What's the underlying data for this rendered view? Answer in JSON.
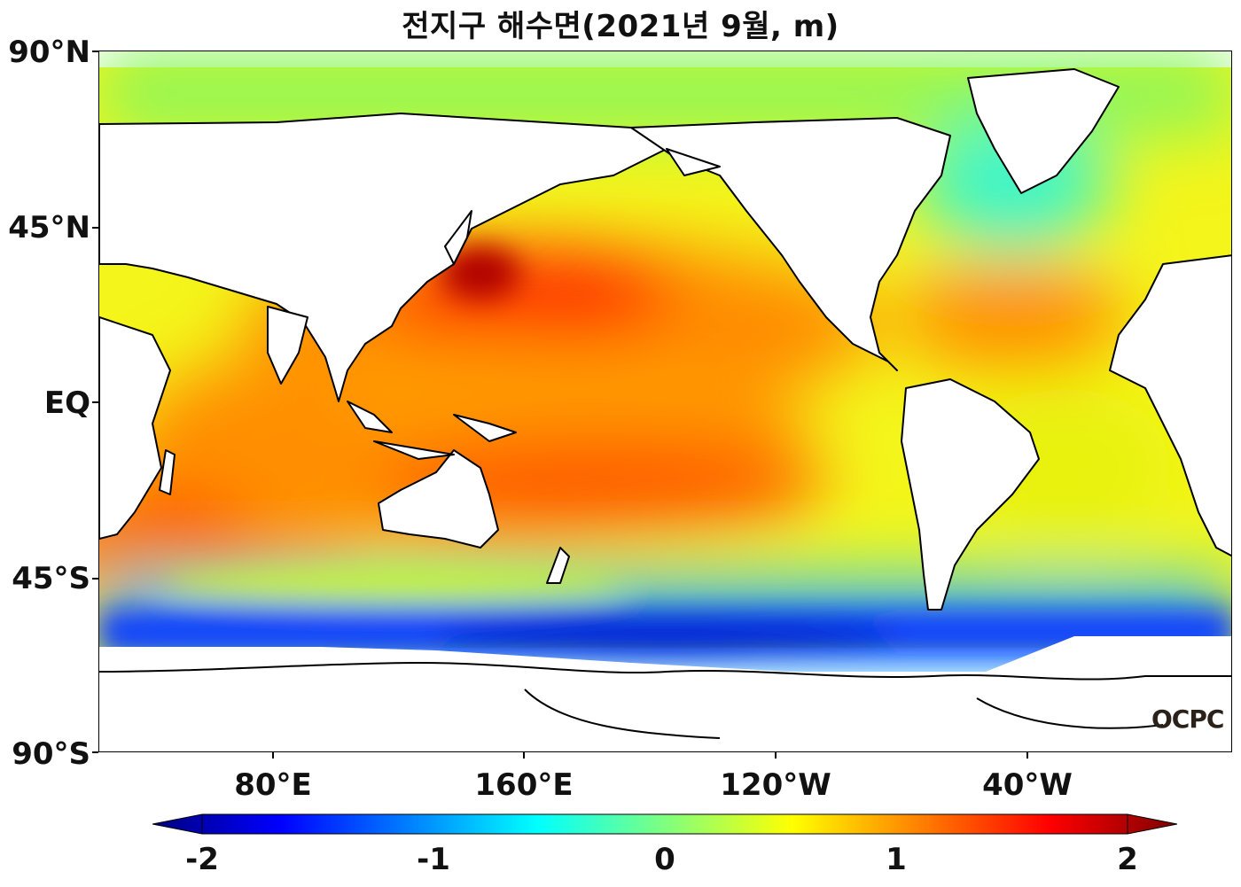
{
  "title": "전지구 해수면(2021년 9월, m)",
  "map": {
    "lat_labels": [
      "90°N",
      "45°N",
      "EQ",
      "45°S",
      "90°S"
    ],
    "lon_labels": [
      "80°E",
      "160°E",
      "120°W",
      "40°W"
    ],
    "logo": "OCPC"
  },
  "colorbar": {
    "ticks": [
      "-2",
      "-1",
      "0",
      "1",
      "2"
    ],
    "colors": [
      "#00007f",
      "#0000ff",
      "#007fff",
      "#00ffff",
      "#7fff7f",
      "#ffff00",
      "#ff7f00",
      "#ff0000",
      "#7f0000"
    ]
  }
}
